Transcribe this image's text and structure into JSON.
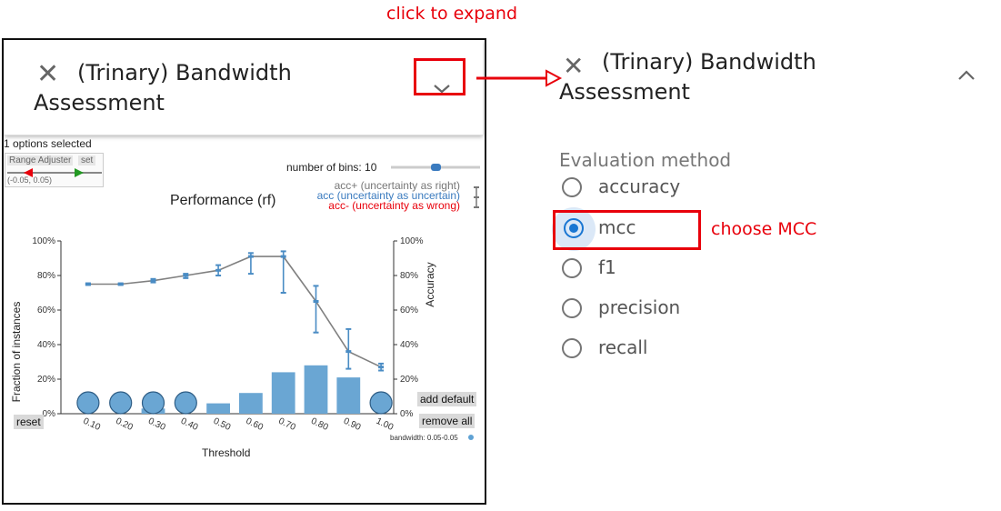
{
  "annotations": {
    "click_to_expand": "click to expand",
    "choose_mcc": "choose MCC"
  },
  "left_card": {
    "title": "(Trinary) Bandwidth Assessment",
    "options_selected": "1 options selected",
    "range_adjuster": {
      "label": "Range Adjuster",
      "set_label": "set",
      "range_text": "(-0.05, 0.05)"
    },
    "bins_label": "number of bins: 10",
    "bins_slider_value": 0.5,
    "legend": {
      "acc_plus": "acc+ (uncertainty as right)",
      "acc": "acc (uncertainty as uncertain)",
      "acc_minus": "acc- (uncertainty as wrong)"
    },
    "buttons": {
      "reset": "reset",
      "add_default": "add default",
      "remove_all": "remove all"
    },
    "bandwidth_label": "bandwidth: 0.05-0.05"
  },
  "chart_data": {
    "type": "bar",
    "title": "Performance (rf)",
    "xlabel": "Threshold",
    "ylabel": "Fraction of instances",
    "y2label": "Accuracy",
    "categories": [
      "0.10",
      "0.20",
      "0.30",
      "0.40",
      "0.50",
      "0.60",
      "0.70",
      "0.80",
      "0.90",
      "1.00"
    ],
    "yticks": [
      "0%",
      "20%",
      "40%",
      "60%",
      "80%",
      "100%"
    ],
    "y2ticks": [
      "0%",
      "20%",
      "40%",
      "60%",
      "80%",
      "100%"
    ],
    "ylim": [
      0,
      100
    ],
    "series": [
      {
        "type": "bar",
        "values": [
          0,
          0,
          3,
          0,
          6,
          12,
          24,
          28,
          21,
          0
        ],
        "circle_markers": [
          true,
          true,
          true,
          true,
          false,
          false,
          false,
          false,
          false,
          true
        ]
      },
      {
        "type": "line",
        "values": [
          75,
          75,
          77,
          80,
          83,
          91,
          91,
          65,
          36,
          27
        ],
        "err_low": [
          74.5,
          74.5,
          76,
          78.5,
          80,
          81,
          70,
          47,
          26,
          25
        ],
        "err_high": [
          75.5,
          75.5,
          78,
          81,
          86,
          93,
          94,
          74,
          49,
          29
        ]
      }
    ],
    "grid": false
  },
  "right_panel": {
    "title": "(Trinary) Bandwidth Assessment",
    "evaluation_label": "Evaluation method",
    "options": [
      {
        "label": "accuracy",
        "selected": false
      },
      {
        "label": "mcc",
        "selected": true
      },
      {
        "label": "f1",
        "selected": false
      },
      {
        "label": "precision",
        "selected": false
      },
      {
        "label": "recall",
        "selected": false
      }
    ]
  }
}
